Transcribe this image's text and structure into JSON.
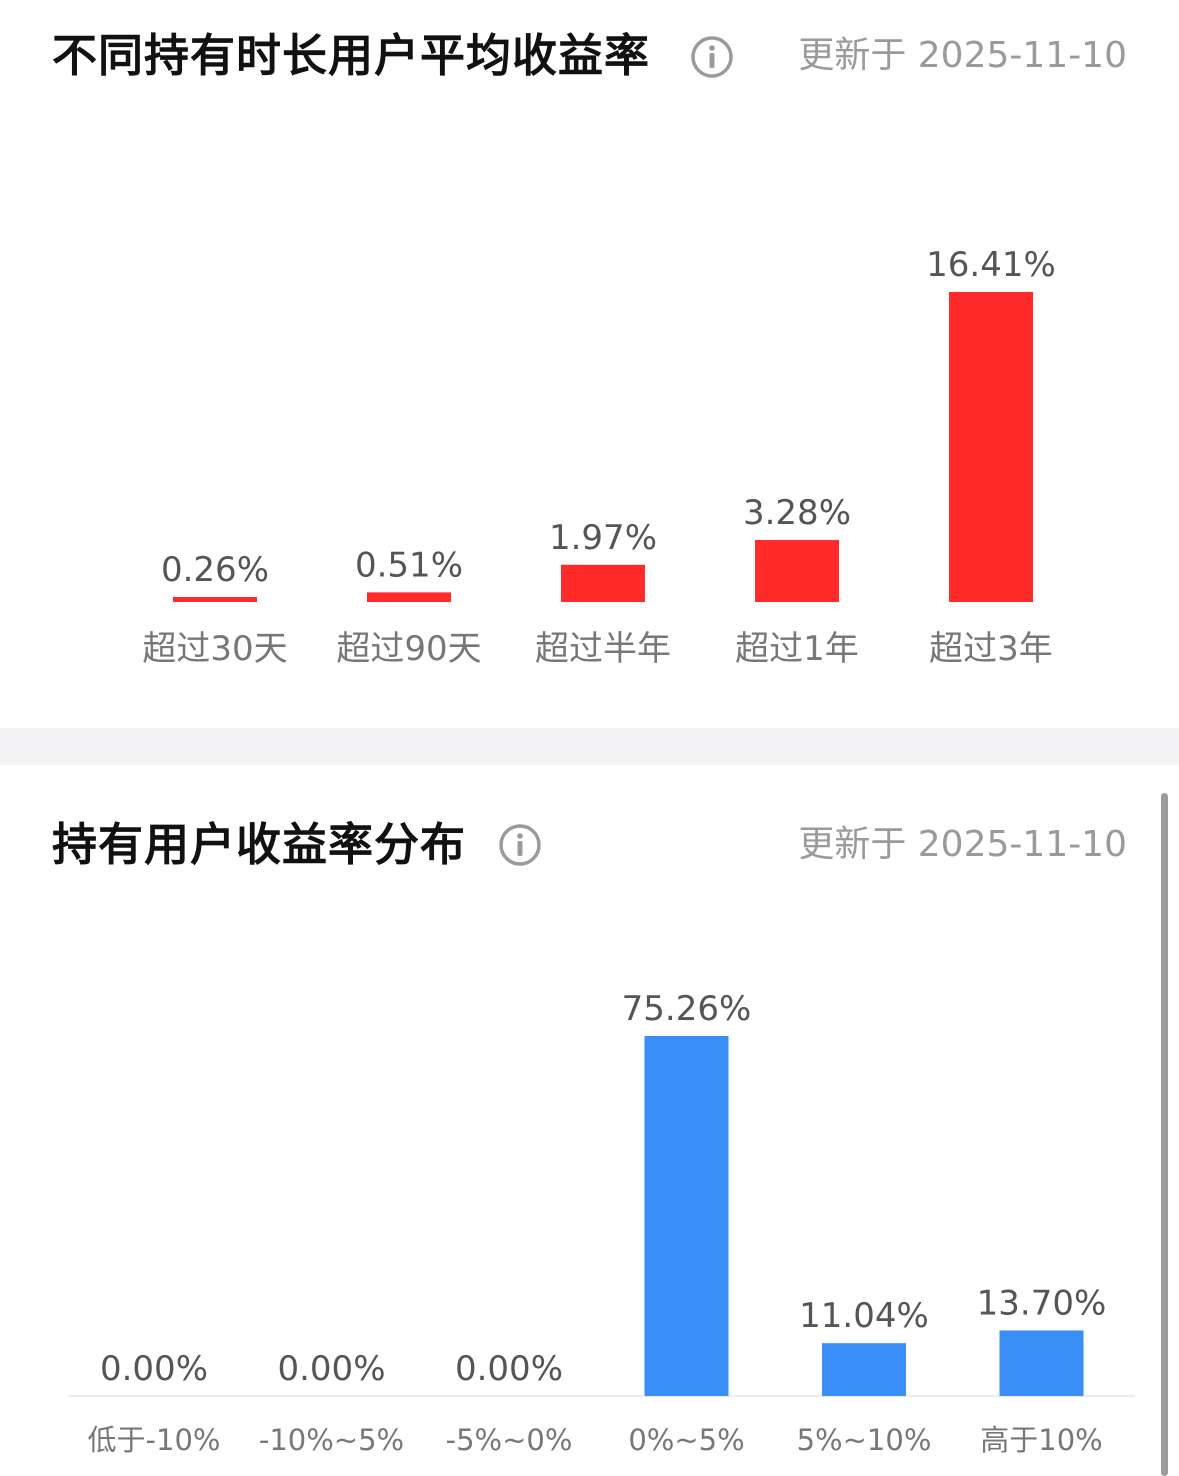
{
  "sections": [
    {
      "title": "不同持有时长用户平均收益率",
      "updated": "更新于 2025-11-10",
      "info_icon": "info-circle-icon"
    },
    {
      "title": "持有用户收益率分布",
      "updated": "更新于 2025-11-10",
      "info_icon": "info-circle-icon"
    }
  ],
  "chart_data": [
    {
      "type": "bar",
      "title": "不同持有时长用户平均收益率",
      "categories": [
        "超过30天",
        "超过90天",
        "超过半年",
        "超过1年",
        "超过3年"
      ],
      "values": [
        0.26,
        0.51,
        1.97,
        3.28,
        16.41
      ],
      "labels": [
        "0.26%",
        "0.51%",
        "1.97%",
        "3.28%",
        "16.41%"
      ],
      "unit": "%",
      "color": "#ff2a2a",
      "xlabel": "",
      "ylabel": "",
      "ylim": [
        0,
        16.41
      ],
      "grid": false,
      "baseline": false
    },
    {
      "type": "bar",
      "title": "持有用户收益率分布",
      "categories": [
        "低于-10%",
        "-10%~5%",
        "-5%~0%",
        "0%~5%",
        "5%~10%",
        "高于10%"
      ],
      "values": [
        0.0,
        0.0,
        0.0,
        75.26,
        11.04,
        13.7
      ],
      "labels": [
        "0.00%",
        "0.00%",
        "0.00%",
        "75.26%",
        "11.04%",
        "13.70%"
      ],
      "unit": "%",
      "color": "#3a8ef8",
      "xlabel": "",
      "ylabel": "",
      "ylim": [
        0,
        75.26
      ],
      "grid": false,
      "baseline": true
    }
  ]
}
